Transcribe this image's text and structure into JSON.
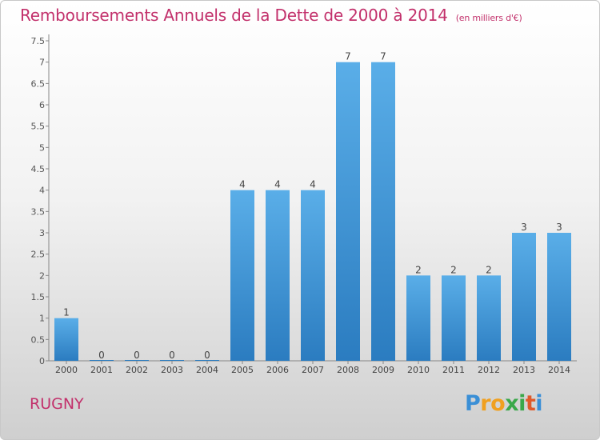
{
  "title": "Remboursements Annuels de la Dette de 2000 à 2014",
  "subtitle": "(en milliers d'€)",
  "commune": "RUGNY",
  "logo": {
    "letters": [
      "P",
      "r",
      "o",
      "x",
      "i",
      "t",
      "i"
    ],
    "colors": [
      "#3a8fd6",
      "#f0a020",
      "#f0a020",
      "#3aa84a",
      "#3aa84a",
      "#e05a2a",
      "#3a8fd6"
    ]
  },
  "colors": {
    "bar_light": "#5aaee8",
    "bar_dark": "#2b7cc0",
    "title": "#c2306b"
  },
  "chart_data": {
    "type": "bar",
    "categories": [
      "2000",
      "2001",
      "2002",
      "2003",
      "2004",
      "2005",
      "2006",
      "2007",
      "2008",
      "2009",
      "2010",
      "2011",
      "2012",
      "2013",
      "2014"
    ],
    "values": [
      1,
      0,
      0,
      0,
      0,
      4,
      4,
      4,
      7,
      7,
      2,
      2,
      2,
      3,
      3
    ],
    "data_labels": [
      "1",
      "0",
      "0",
      "0",
      "0",
      "4",
      "4",
      "4",
      "7",
      "7",
      "2",
      "2",
      "2",
      "3",
      "3"
    ],
    "yticks": [
      "0",
      "0.5",
      "1",
      "1.5",
      "2",
      "2.5",
      "3",
      "3.5",
      "4",
      "4.5",
      "5",
      "5.5",
      "6",
      "6.5",
      "7",
      "7.5"
    ],
    "ylim": [
      0,
      7.5
    ],
    "xlabel": "",
    "ylabel": "",
    "grid": false
  }
}
